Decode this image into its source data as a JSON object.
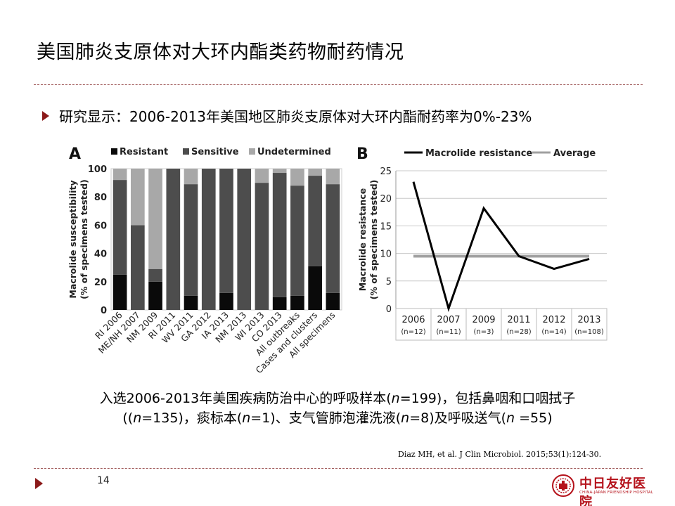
{
  "title": "美国肺炎支原体对大环内酯类药物耐药情况",
  "bullet": "研究显示：2006-2013年美国地区肺炎支原体对大环内酯耐药率为0%-23%",
  "caption": {
    "line1_pre": "入选2006-2013年美国疾病防治中心的呼吸样本(",
    "n": "n",
    "line1_val": "=199)，包括鼻咽和口咽拭子",
    "line2_a": "((",
    "line2_b": "=135)，痰标本(",
    "line2_c": "=1)、支气管肺泡灌洗液(",
    "line2_d": "=8)及呼吸送气(",
    "line2_e": " =55)"
  },
  "citation": "Diaz MH, et al. J Clin Microbiol. 2015;53(1):124-30.",
  "page_number": "14",
  "logo": {
    "cn": "中日友好医院",
    "en": "CHINA-JAPAN FRIENDSHIP HOSPITAL"
  },
  "colors": {
    "accent": "#8b1a1a",
    "resistant": "#0a0a0a",
    "sensitive": "#4d4d4d",
    "undetermined": "#a8a8a8",
    "average": "#a0a0a0",
    "logo": "#b5121b"
  },
  "chart_data": [
    {
      "type": "bar",
      "panel_label": "A",
      "stacked": true,
      "ylabel": "Macrolide susceptibility\n(% of specimens tested)",
      "ylim": [
        0,
        100
      ],
      "yticks": [
        0,
        20,
        40,
        60,
        80,
        100
      ],
      "categories": [
        "RI 2006",
        "ME/NH 2007",
        "NM 2009",
        "RI 2011",
        "WV 2011",
        "GA 2012",
        "IA 2013",
        "NM 2013",
        "WI 2013",
        "CO 2013",
        "All outbreaks",
        "Cases and clusters",
        "All specimens"
      ],
      "series": [
        {
          "name": "Resistant",
          "values": [
            25,
            0,
            20,
            0,
            10,
            0,
            12,
            0,
            0,
            9,
            10,
            31,
            12
          ]
        },
        {
          "name": "Sensitive",
          "values": [
            67,
            60,
            9,
            100,
            79,
            100,
            88,
            100,
            90,
            88,
            78,
            64,
            77
          ]
        },
        {
          "name": "Undetermined",
          "values": [
            8,
            40,
            71,
            0,
            11,
            0,
            0,
            0,
            10,
            3,
            12,
            5,
            11
          ]
        }
      ],
      "legend": "top"
    },
    {
      "type": "line",
      "panel_label": "B",
      "ylabel": "Macrolide resistance\n(% of specimens tested)",
      "ylim": [
        0,
        25
      ],
      "yticks": [
        0,
        5,
        10,
        15,
        20,
        25
      ],
      "categories": [
        "2006",
        "2007",
        "2009",
        "2011",
        "2012",
        "2013"
      ],
      "sublabels": [
        "(n=12)",
        "(n=11)",
        "(n=3)",
        "(n=28)",
        "(n=14)",
        "(n=108)"
      ],
      "series": [
        {
          "name": "Macrolide resistance",
          "values": [
            23,
            0,
            18.2,
            9.5,
            7.2,
            9
          ]
        },
        {
          "name": "Average",
          "values": [
            9.5,
            9.5,
            9.5,
            9.5,
            9.5,
            9.5
          ]
        }
      ],
      "legend": "top"
    }
  ]
}
